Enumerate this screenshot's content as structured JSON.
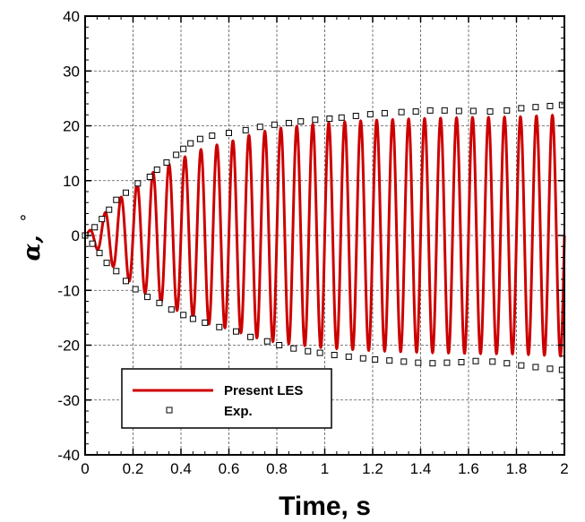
{
  "colors": {
    "les": "#cc0000",
    "exp_marker_stroke": "#000000",
    "grid": "#555555"
  },
  "chart_data": {
    "type": "line",
    "xlabel": "Time, s",
    "ylabel_symbol": "α,",
    "ylabel_unit": "°",
    "xlim": [
      0,
      2
    ],
    "ylim": [
      -40,
      40
    ],
    "xticks": [
      "0",
      "0.2",
      "0.4",
      "0.6",
      "0.8",
      "1",
      "1.2",
      "1.4",
      "1.6",
      "1.8",
      "2"
    ],
    "yticks": [
      "40",
      "30",
      "20",
      "10",
      "0",
      "-10",
      "-20",
      "-30",
      "-40"
    ],
    "grid": true,
    "legend_position": "bottom-left",
    "series": [
      {
        "name": "Present LES",
        "style": "line",
        "frequency_hz": 15,
        "envelope_x": [
          0,
          0.1,
          0.2,
          0.3,
          0.4,
          0.5,
          0.6,
          0.7,
          0.8,
          0.9,
          1.0,
          1.2,
          1.4,
          1.6,
          1.8,
          2.0
        ],
        "envelope_amplitude": [
          0,
          5,
          9,
          12,
          14,
          16,
          17,
          18.5,
          19.5,
          20,
          20.5,
          21,
          21.3,
          21.5,
          21.6,
          22
        ]
      },
      {
        "name": "Exp.",
        "style": "marker",
        "upper": [
          [
            0.04,
            1.5
          ],
          [
            0.07,
            3
          ],
          [
            0.1,
            4.7
          ],
          [
            0.13,
            6.5
          ],
          [
            0.17,
            7.8
          ],
          [
            0.22,
            9.5
          ],
          [
            0.27,
            10.7
          ],
          [
            0.3,
            12
          ],
          [
            0.34,
            13.3
          ],
          [
            0.38,
            14.7
          ],
          [
            0.41,
            15.8
          ],
          [
            0.44,
            16.8
          ],
          [
            0.48,
            17.6
          ],
          [
            0.53,
            18.2
          ],
          [
            0.6,
            18.7
          ],
          [
            0.67,
            19.2
          ],
          [
            0.73,
            19.8
          ],
          [
            0.79,
            20.2
          ],
          [
            0.85,
            20.5
          ],
          [
            0.9,
            20.8
          ],
          [
            0.96,
            21.1
          ],
          [
            1.02,
            21.3
          ],
          [
            1.07,
            21.5
          ],
          [
            1.13,
            21.8
          ],
          [
            1.19,
            22.1
          ],
          [
            1.25,
            22.3
          ],
          [
            1.32,
            22.5
          ],
          [
            1.38,
            22.6
          ],
          [
            1.44,
            22.8
          ],
          [
            1.5,
            22.8
          ],
          [
            1.56,
            22.7
          ],
          [
            1.62,
            22.7
          ],
          [
            1.69,
            22.6
          ],
          [
            1.76,
            22.8
          ],
          [
            1.82,
            23.2
          ],
          [
            1.88,
            23.4
          ],
          [
            1.94,
            23.6
          ],
          [
            1.99,
            23.8
          ]
        ],
        "lower": [
          [
            0.03,
            -1.5
          ],
          [
            0.06,
            -3.2
          ],
          [
            0.09,
            -5
          ],
          [
            0.13,
            -6.5
          ],
          [
            0.17,
            -8.3
          ],
          [
            0.21,
            -9.8
          ],
          [
            0.26,
            -11.2
          ],
          [
            0.31,
            -12.3
          ],
          [
            0.36,
            -13.5
          ],
          [
            0.41,
            -14.5
          ],
          [
            0.45,
            -15.2
          ],
          [
            0.5,
            -15.9
          ],
          [
            0.56,
            -16.7
          ],
          [
            0.63,
            -17.5
          ],
          [
            0.69,
            -18.5
          ],
          [
            0.76,
            -19.3
          ],
          [
            0.81,
            -20
          ],
          [
            0.87,
            -20.6
          ],
          [
            0.93,
            -21.1
          ],
          [
            0.98,
            -21.4
          ],
          [
            1.04,
            -21.8
          ],
          [
            1.1,
            -22.1
          ],
          [
            1.16,
            -22.4
          ],
          [
            1.21,
            -22.6
          ],
          [
            1.27,
            -22.8
          ],
          [
            1.33,
            -23
          ],
          [
            1.39,
            -23.2
          ],
          [
            1.45,
            -23.3
          ],
          [
            1.51,
            -23.2
          ],
          [
            1.57,
            -23.1
          ],
          [
            1.63,
            -22.9
          ],
          [
            1.7,
            -23
          ],
          [
            1.76,
            -23.3
          ],
          [
            1.82,
            -23.7
          ],
          [
            1.88,
            -24
          ],
          [
            1.94,
            -24.3
          ],
          [
            1.99,
            -24.5
          ]
        ]
      }
    ]
  }
}
